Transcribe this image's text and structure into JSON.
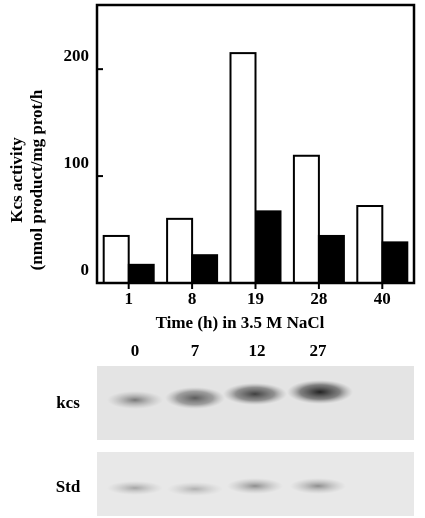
{
  "chart_data": {
    "type": "bar",
    "y_label_lines": [
      "Kcs activity",
      "(nmol product/mg prot/h"
    ],
    "x_label": "Time (h) in 3.5 M NaCl",
    "categories": [
      "1",
      "8",
      "19",
      "28",
      "40"
    ],
    "series": [
      {
        "color": "#ffffff",
        "values": [
          44,
          60,
          215,
          119,
          72
        ]
      },
      {
        "color": "#000000",
        "values": [
          17,
          26,
          67,
          44,
          38
        ]
      }
    ],
    "ylim": [
      0,
      260
    ],
    "yticks": [
      0,
      100,
      200
    ]
  },
  "blot": {
    "lanes": [
      "0",
      "7",
      "12",
      "27"
    ],
    "rows": [
      "kcs",
      "Std"
    ]
  }
}
